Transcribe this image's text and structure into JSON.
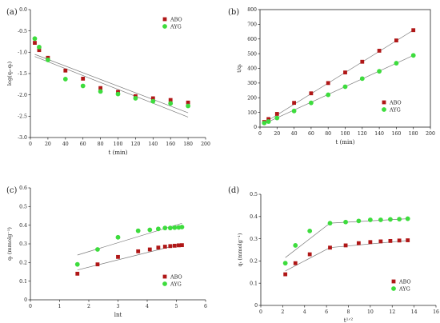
{
  "colors": {
    "abo": "#b01717",
    "ayg": "#3ddc3d",
    "fit": "#7a7a7a",
    "axis": "#222222"
  },
  "chart_data": [
    {
      "panel_label": "(a)",
      "type": "scatter",
      "xlabel": "t (min)",
      "ylabel": "log(qₑ-qₜ)",
      "xlim": [
        0,
        200
      ],
      "ylim": [
        -3.0,
        0.0
      ],
      "xticks": [
        0,
        20,
        40,
        60,
        80,
        100,
        120,
        140,
        160,
        180,
        200
      ],
      "xtick_labels": [
        "0",
        "20",
        "40",
        "60",
        "80",
        "100",
        "120",
        "140",
        "160",
        "180",
        "200"
      ],
      "yticks": [
        0.0,
        -0.5,
        -1.0,
        -1.5,
        -2.0,
        -2.5,
        -3.0
      ],
      "ytick_labels": [
        "0.0",
        "-0.5",
        "-1.0",
        "-1.5",
        "-2.0",
        "-2.5",
        "-3.0"
      ],
      "legend_position": "top-right",
      "series": [
        {
          "name": "ABO",
          "color_key": "abo",
          "marker": "square",
          "x": [
            5,
            10,
            20,
            40,
            60,
            80,
            100,
            120,
            140,
            160,
            180
          ],
          "y": [
            -0.78,
            -0.95,
            -1.13,
            -1.43,
            -1.62,
            -1.84,
            -1.93,
            -2.03,
            -2.08,
            -2.12,
            -2.18
          ],
          "fit": [
            [
              5,
              -1.05
            ],
            [
              180,
              -2.42
            ]
          ]
        },
        {
          "name": "AYG",
          "color_key": "ayg",
          "marker": "circle",
          "x": [
            5,
            10,
            20,
            40,
            60,
            80,
            100,
            120,
            140,
            160,
            180
          ],
          "y": [
            -0.68,
            -0.88,
            -1.18,
            -1.63,
            -1.79,
            -1.92,
            -1.98,
            -2.08,
            -2.15,
            -2.2,
            -2.26
          ],
          "fit": [
            [
              5,
              -1.1
            ],
            [
              180,
              -2.52
            ]
          ]
        }
      ]
    },
    {
      "panel_label": "(b)",
      "type": "scatter",
      "xlabel": "t (min)",
      "ylabel": "t/qₜ",
      "xlim": [
        0,
        200
      ],
      "ylim": [
        0,
        800
      ],
      "xticks": [
        0,
        20,
        40,
        60,
        80,
        100,
        120,
        140,
        160,
        180,
        200
      ],
      "xtick_labels": [
        "0",
        "20",
        "40",
        "60",
        "80",
        "100",
        "120",
        "140",
        "160",
        "180",
        "200"
      ],
      "yticks": [
        0,
        100,
        200,
        300,
        400,
        500,
        600,
        700,
        800
      ],
      "ytick_labels": [
        "0",
        "100",
        "200",
        "300",
        "400",
        "500",
        "600",
        "700",
        "800"
      ],
      "legend_position": "bottom-right",
      "series": [
        {
          "name": "ABO",
          "color_key": "abo",
          "marker": "square",
          "x": [
            5,
            10,
            20,
            40,
            60,
            80,
            100,
            120,
            140,
            160,
            180
          ],
          "y": [
            35,
            55,
            90,
            165,
            230,
            300,
            372,
            445,
            520,
            590,
            660
          ],
          "fit": [
            [
              3,
              22
            ],
            [
              180,
              660
            ]
          ]
        },
        {
          "name": "AYG",
          "color_key": "ayg",
          "marker": "circle",
          "x": [
            5,
            10,
            20,
            40,
            60,
            80,
            100,
            120,
            140,
            160,
            180
          ],
          "y": [
            28,
            38,
            62,
            110,
            165,
            220,
            275,
            330,
            380,
            435,
            488
          ],
          "fit": [
            [
              3,
              18
            ],
            [
              180,
              488
            ]
          ]
        }
      ]
    },
    {
      "panel_label": "(c)",
      "type": "scatter",
      "xlabel": "lnt",
      "ylabel": "qₜ (mmolg⁻¹)",
      "xlim": [
        0,
        6
      ],
      "ylim": [
        0.0,
        0.6
      ],
      "xticks": [
        0,
        1,
        2,
        3,
        4,
        5,
        6
      ],
      "xtick_labels": [
        "0",
        "1",
        "2",
        "3",
        "4",
        "5",
        "6"
      ],
      "yticks": [
        0.0,
        0.1,
        0.2,
        0.3,
        0.4,
        0.5,
        0.6
      ],
      "ytick_labels": [
        "0",
        "0.1",
        "0.2",
        "0.3",
        "0.4",
        "0.5",
        "0.6"
      ],
      "legend_position": "bottom-right",
      "series": [
        {
          "name": "ABO",
          "color_key": "abo",
          "marker": "square",
          "x": [
            1.61,
            2.3,
            3.0,
            3.69,
            4.09,
            4.38,
            4.61,
            4.79,
            4.94,
            5.08,
            5.19
          ],
          "y": [
            0.14,
            0.19,
            0.23,
            0.26,
            0.27,
            0.28,
            0.285,
            0.288,
            0.29,
            0.292,
            0.293
          ],
          "fit": [
            [
              1.61,
              0.16
            ],
            [
              5.19,
              0.3
            ]
          ]
        },
        {
          "name": "AYG",
          "color_key": "ayg",
          "marker": "circle",
          "x": [
            1.61,
            2.3,
            3.0,
            3.69,
            4.09,
            4.38,
            4.61,
            4.79,
            4.94,
            5.08,
            5.19
          ],
          "y": [
            0.19,
            0.27,
            0.335,
            0.37,
            0.375,
            0.38,
            0.385,
            0.385,
            0.387,
            0.388,
            0.39
          ],
          "fit": [
            [
              1.61,
              0.24
            ],
            [
              5.19,
              0.41
            ]
          ]
        }
      ]
    },
    {
      "panel_label": "(d)",
      "type": "scatter",
      "xlabel": "t¹ᐟ²",
      "ylabel": "qₜ (mmolg⁻¹)",
      "xlim": [
        0,
        16
      ],
      "ylim": [
        0.0,
        0.5
      ],
      "xticks": [
        0,
        2,
        4,
        6,
        8,
        10,
        12,
        14,
        16
      ],
      "xtick_labels": [
        "0",
        "2",
        "4",
        "6",
        "8",
        "10",
        "12",
        "14",
        "16"
      ],
      "yticks": [
        0.0,
        0.1,
        0.2,
        0.3,
        0.4,
        0.5
      ],
      "ytick_labels": [
        "0",
        "0.1",
        "0.2",
        "0.3",
        "0.4",
        "0.5"
      ],
      "legend_position": "bottom-right",
      "series": [
        {
          "name": "ABO",
          "color_key": "abo",
          "marker": "square",
          "x": [
            2.24,
            3.16,
            4.47,
            6.32,
            7.75,
            8.94,
            10.0,
            10.95,
            11.83,
            12.65,
            13.42
          ],
          "y": [
            0.14,
            0.19,
            0.23,
            0.26,
            0.27,
            0.28,
            0.285,
            0.288,
            0.29,
            0.292,
            0.293
          ],
          "fit": [
            [
              2.24,
              0.155
            ],
            [
              6.32,
              0.26
            ],
            [
              13.42,
              0.292
            ]
          ]
        },
        {
          "name": "AYG",
          "color_key": "ayg",
          "marker": "circle",
          "x": [
            2.24,
            3.16,
            4.47,
            6.32,
            7.75,
            8.94,
            10.0,
            10.95,
            11.83,
            12.65,
            13.42
          ],
          "y": [
            0.19,
            0.27,
            0.335,
            0.37,
            0.375,
            0.38,
            0.385,
            0.385,
            0.387,
            0.388,
            0.39
          ],
          "fit": [
            [
              2.24,
              0.215
            ],
            [
              6.32,
              0.37
            ],
            [
              13.42,
              0.39
            ]
          ]
        }
      ]
    }
  ]
}
